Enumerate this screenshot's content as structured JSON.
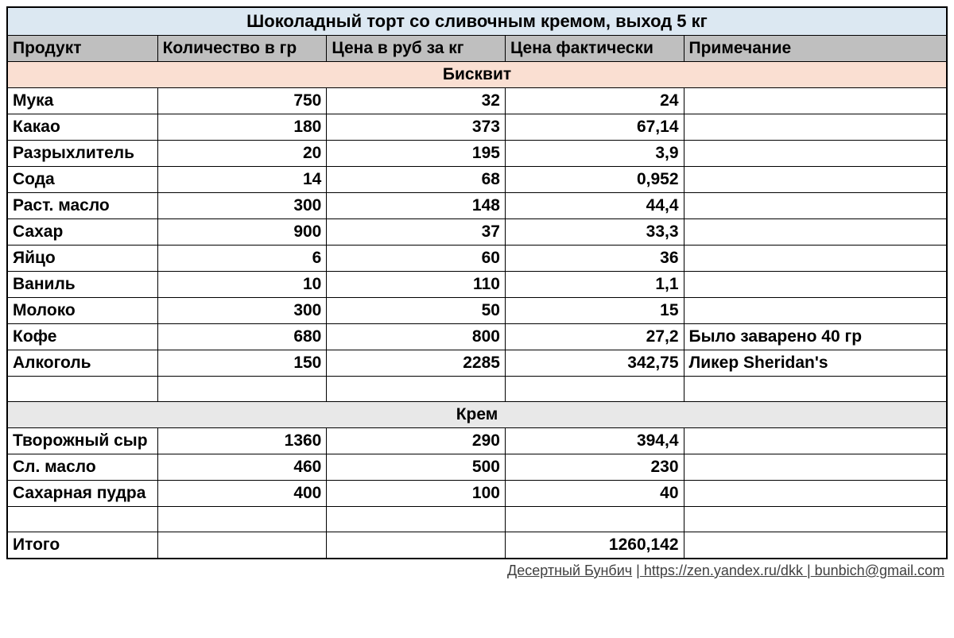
{
  "title": "Шоколадный торт со сливочным кремом, выход 5 кг",
  "columns": {
    "product": "Продукт",
    "quantity": "Количество в гр",
    "price_per_kg": "Цена в руб за кг",
    "actual_price": "Цена фактически",
    "note": "Примечание"
  },
  "sections": {
    "biscuit": {
      "label": "Бисквит",
      "bg_color": "#fadfd2",
      "rows": [
        {
          "product": "Мука",
          "qty": "750",
          "price": "32",
          "actual": "24",
          "note": ""
        },
        {
          "product": "Какао",
          "qty": "180",
          "price": "373",
          "actual": "67,14",
          "note": ""
        },
        {
          "product": "Разрыхлитель",
          "qty": "20",
          "price": "195",
          "actual": "3,9",
          "note": ""
        },
        {
          "product": "Сода",
          "qty": "14",
          "price": "68",
          "actual": "0,952",
          "note": ""
        },
        {
          "product": "Раст. масло",
          "qty": "300",
          "price": "148",
          "actual": "44,4",
          "note": ""
        },
        {
          "product": "Сахар",
          "qty": "900",
          "price": "37",
          "actual": "33,3",
          "note": ""
        },
        {
          "product": "Яйцо",
          "qty": "6",
          "price": "60",
          "actual": "36",
          "note": ""
        },
        {
          "product": "Ваниль",
          "qty": "10",
          "price": "110",
          "actual": "1,1",
          "note": ""
        },
        {
          "product": "Молоко",
          "qty": "300",
          "price": "50",
          "actual": "15",
          "note": ""
        },
        {
          "product": "Кофе",
          "qty": "680",
          "price": "800",
          "actual": "27,2",
          "note": "Было заварено 40 гр"
        },
        {
          "product": "Алкоголь",
          "qty": "150",
          "price": "2285",
          "actual": "342,75",
          "note": "Ликер Sheridan's"
        }
      ]
    },
    "cream": {
      "label": "Крем",
      "bg_color": "#e8e8e8",
      "rows": [
        {
          "product": "Творожный сыр",
          "qty": "1360",
          "price": "290",
          "actual": "394,4",
          "note": ""
        },
        {
          "product": "Сл. масло",
          "qty": "460",
          "price": "500",
          "actual": "230",
          "note": ""
        },
        {
          "product": "Сахарная пудра",
          "qty": "400",
          "price": "100",
          "actual": "40",
          "note": ""
        }
      ]
    }
  },
  "total": {
    "label": "Итого",
    "value": "1260,142"
  },
  "footer": {
    "author": "Десертный Бунбич",
    "url": " https://zen.yandex.ru/dkk ",
    "email": " bunbich@gmail.com"
  },
  "styling": {
    "title_bg": "#dce8f2",
    "header_bg": "#bfbfbf",
    "border_color": "#000000",
    "font_family": "Arial",
    "cell_fontsize": 21,
    "title_fontsize": 22
  }
}
